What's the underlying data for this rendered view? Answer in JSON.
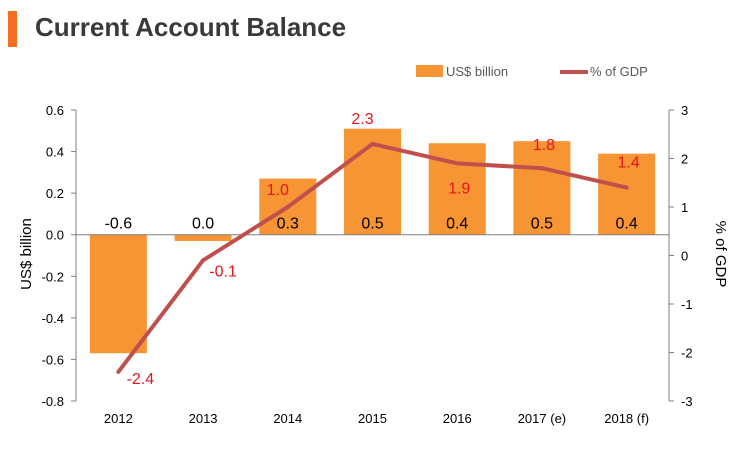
{
  "header": {
    "title": "Current Account Balance"
  },
  "colors": {
    "accent": "#f36f21",
    "bar": "#f79433",
    "line": "#c0504d",
    "label_red": "#e8141a",
    "axis": "#7f7f7f",
    "text": "#3a3a3a"
  },
  "chart_data": {
    "type": "bar",
    "categories": [
      "2012",
      "2013",
      "2014",
      "2015",
      "2016",
      "2017 (e)",
      "2018 (f)"
    ],
    "series": [
      {
        "name": "US$ billion",
        "type": "bar",
        "axis": "left",
        "values": [
          -0.57,
          -0.03,
          0.27,
          0.51,
          0.44,
          0.45,
          0.39
        ],
        "labels": [
          "-0.6",
          "0.0",
          "0.3",
          "0.5",
          "0.4",
          "0.5",
          "0.4"
        ]
      },
      {
        "name": "% of GDP",
        "type": "line",
        "axis": "right",
        "values": [
          -2.4,
          -0.1,
          1.0,
          2.3,
          1.9,
          1.8,
          1.4
        ],
        "labels": [
          "-2.4",
          "-0.1",
          "1.0",
          "2.3",
          "1.9",
          "1.8",
          "1.4"
        ]
      }
    ],
    "ylabel": "US$ billion",
    "y2label": "% of GDP",
    "ylim": [
      -0.8,
      0.6
    ],
    "y2lim": [
      -3,
      3
    ],
    "yticks": [
      "0.6",
      "0.4",
      "0.2",
      "0.0",
      "-0.2",
      "-0.4",
      "-0.6",
      "-0.8"
    ],
    "y2ticks": [
      "3",
      "2",
      "1",
      "0",
      "-1",
      "-2",
      "-3"
    ],
    "legend": "top-right",
    "grid": false
  }
}
